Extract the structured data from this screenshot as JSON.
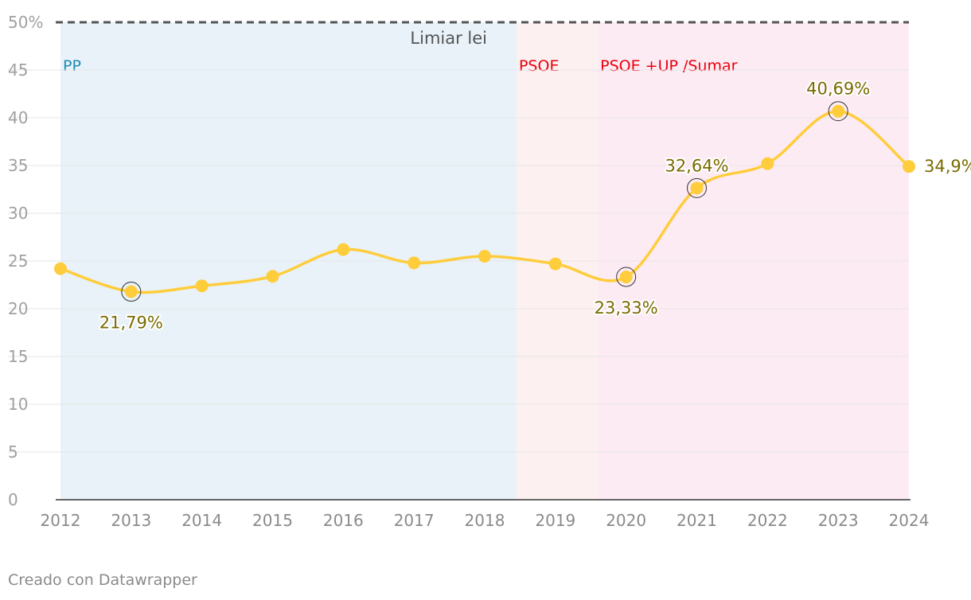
{
  "chart_data": {
    "type": "line",
    "x": [
      "2012",
      "2013",
      "2014",
      "2015",
      "2016",
      "2017",
      "2018",
      "2019",
      "2020",
      "2021",
      "2022",
      "2023",
      "2024"
    ],
    "series": [
      {
        "values": [
          24.2,
          21.79,
          22.4,
          23.4,
          26.2,
          24.8,
          25.5,
          24.7,
          23.33,
          32.64,
          35.2,
          40.69,
          34.9
        ]
      }
    ],
    "ylim": [
      0,
      50
    ],
    "yticks": [
      {
        "v": 0,
        "label": "0"
      },
      {
        "v": 5,
        "label": "5"
      },
      {
        "v": 10,
        "label": "10"
      },
      {
        "v": 15,
        "label": "15"
      },
      {
        "v": 20,
        "label": "20"
      },
      {
        "v": 25,
        "label": "25"
      },
      {
        "v": 30,
        "label": "30"
      },
      {
        "v": 35,
        "label": "35"
      },
      {
        "v": 40,
        "label": "40"
      },
      {
        "v": 45,
        "label": "45"
      },
      {
        "v": 50,
        "label": "50%"
      }
    ],
    "grid": true,
    "line_color": "#ffcd3c",
    "reference_line": {
      "value": 50,
      "label": "Limiar lei",
      "color": "#555555"
    },
    "bands": [
      {
        "label": "PP",
        "from": 2012,
        "to": 2018.45,
        "color": "#e8f2f8",
        "label_color": "#1a8bb8"
      },
      {
        "label": "PSOE",
        "from": 2018.45,
        "to": 2019.6,
        "color": "#fdf0f1",
        "label_color": "#e8000b"
      },
      {
        "label": "PSOE +UP /Sumar",
        "from": 2019.6,
        "to": 2024.2,
        "color": "#fdebf4",
        "label_color": "#e8000b"
      }
    ],
    "annotations": [
      {
        "x": "2013",
        "y": 21.79,
        "text": "21,79%",
        "pos": "below",
        "ring": true
      },
      {
        "x": "2020",
        "y": 23.33,
        "text": "23,33%",
        "pos": "below",
        "ring": true
      },
      {
        "x": "2021",
        "y": 32.64,
        "text": "32,64%",
        "pos": "above",
        "ring": true
      },
      {
        "x": "2023",
        "y": 40.69,
        "text": "40,69%",
        "pos": "above",
        "ring": true
      },
      {
        "x": "2024",
        "y": 34.9,
        "text": "34,9%",
        "pos": "right",
        "ring": false
      }
    ]
  },
  "footer": {
    "credit": "Creado con Datawrapper"
  }
}
